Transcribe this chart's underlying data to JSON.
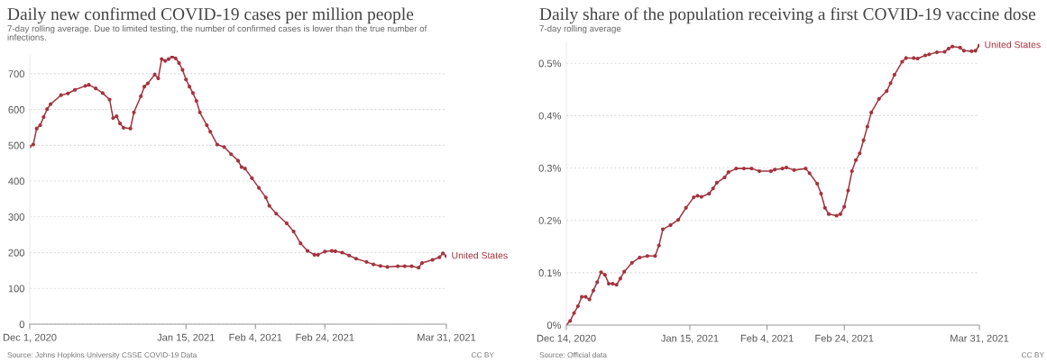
{
  "chart_data": [
    {
      "type": "line",
      "title": "Daily new confirmed COVID-19 cases per million people",
      "subtitle": "7-day rolling average. Due to limited testing, the number of confirmed cases is lower than the true number of\ninfections.",
      "annotations": [
        "Source: Johns Hopkins University CSSE COVID-19 Data",
        "CC BY"
      ],
      "series": [
        {
          "name": "United States",
          "color": "#a3343f",
          "x": [
            "2020-12-01",
            "2020-12-02",
            "2020-12-03",
            "2020-12-04",
            "2020-12-05",
            "2020-12-06",
            "2020-12-07",
            "2020-12-10",
            "2020-12-12",
            "2020-12-14",
            "2020-12-17",
            "2020-12-18",
            "2020-12-20",
            "2020-12-22",
            "2020-12-24",
            "2020-12-25",
            "2020-12-26",
            "2020-12-27",
            "2020-12-28",
            "2020-12-30",
            "2020-12-31",
            "2021-01-02",
            "2021-01-03",
            "2021-01-04",
            "2021-01-06",
            "2021-01-07",
            "2021-01-08",
            "2021-01-09",
            "2021-01-10",
            "2021-01-11",
            "2021-01-12",
            "2021-01-13",
            "2021-01-14",
            "2021-01-15",
            "2021-01-16",
            "2021-01-17",
            "2021-01-18",
            "2021-01-19",
            "2021-01-21",
            "2021-01-22",
            "2021-01-24",
            "2021-01-26",
            "2021-01-28",
            "2021-01-30",
            "2021-01-31",
            "2021-02-01",
            "2021-02-03",
            "2021-02-05",
            "2021-02-07",
            "2021-02-08",
            "2021-02-10",
            "2021-02-13",
            "2021-02-15",
            "2021-02-17",
            "2021-02-19",
            "2021-02-21",
            "2021-02-22",
            "2021-02-24",
            "2021-02-26",
            "2021-02-27",
            "2021-03-01",
            "2021-03-03",
            "2021-03-05",
            "2021-03-08",
            "2021-03-10",
            "2021-03-12",
            "2021-03-14",
            "2021-03-17",
            "2021-03-19",
            "2021-03-21",
            "2021-03-23",
            "2021-03-24",
            "2021-03-27",
            "2021-03-29",
            "2021-03-30",
            "2021-03-31"
          ],
          "values": [
            497,
            502,
            547,
            556,
            579,
            601,
            615,
            640,
            645,
            655,
            666,
            669,
            659,
            646,
            628,
            576,
            581,
            561,
            549,
            547,
            592,
            637,
            664,
            673,
            698,
            687,
            741,
            736,
            741,
            748,
            743,
            730,
            711,
            684,
            664,
            646,
            624,
            592,
            556,
            538,
            502,
            495,
            475,
            457,
            439,
            435,
            408,
            381,
            354,
            331,
            309,
            282,
            259,
            226,
            205,
            194,
            194,
            203,
            205,
            204,
            200,
            192,
            183,
            174,
            167,
            163,
            160,
            162,
            162,
            162,
            158,
            171,
            180,
            187,
            198,
            190
          ]
        }
      ],
      "xlim": [
        "2020-12-01",
        "2021-03-31"
      ],
      "xticks": [
        {
          "value": "2020-12-01",
          "label": "Dec 1, 2020"
        },
        {
          "value": "2021-01-15",
          "label": "Jan 15, 2021"
        },
        {
          "value": "2021-02-04",
          "label": "Feb 4, 2021"
        },
        {
          "value": "2021-02-24",
          "label": "Feb 24, 2021"
        },
        {
          "value": "2021-03-31",
          "label": "Mar 31, 2021"
        }
      ],
      "ylim": [
        0,
        750
      ],
      "yticks": [
        0,
        100,
        200,
        300,
        400,
        500,
        600,
        700
      ],
      "grid": "y",
      "legend": false,
      "marker": "circle",
      "line_style": "solid"
    },
    {
      "type": "line",
      "title": "Daily share of the population receiving a first COVID-19 vaccine dose",
      "subtitle": "7-day rolling average",
      "annotations": [
        "Source: Official data",
        "CC BY"
      ],
      "series": [
        {
          "name": "United States",
          "color": "#a3343f",
          "x": [
            "2020-12-14",
            "2020-12-15",
            "2020-12-16",
            "2020-12-17",
            "2020-12-18",
            "2020-12-19",
            "2020-12-20",
            "2020-12-21",
            "2020-12-22",
            "2020-12-23",
            "2020-12-24",
            "2020-12-25",
            "2020-12-26",
            "2020-12-27",
            "2020-12-28",
            "2020-12-29",
            "2020-12-31",
            "2021-01-02",
            "2021-01-04",
            "2021-01-06",
            "2021-01-07",
            "2021-01-08",
            "2021-01-10",
            "2021-01-12",
            "2021-01-14",
            "2021-01-16",
            "2021-01-17",
            "2021-01-18",
            "2021-01-20",
            "2021-01-21",
            "2021-01-22",
            "2021-01-24",
            "2021-01-25",
            "2021-01-27",
            "2021-01-29",
            "2021-01-31",
            "2021-02-02",
            "2021-02-05",
            "2021-02-06",
            "2021-02-08",
            "2021-02-09",
            "2021-02-11",
            "2021-02-14",
            "2021-02-15",
            "2021-02-17",
            "2021-02-18",
            "2021-02-19",
            "2021-02-20",
            "2021-02-22",
            "2021-02-23",
            "2021-02-24",
            "2021-02-25",
            "2021-02-26",
            "2021-02-27",
            "2021-02-28",
            "2021-03-01",
            "2021-03-02",
            "2021-03-03",
            "2021-03-05",
            "2021-03-07",
            "2021-03-08",
            "2021-03-09",
            "2021-03-11",
            "2021-03-12",
            "2021-03-14",
            "2021-03-15",
            "2021-03-17",
            "2021-03-18",
            "2021-03-20",
            "2021-03-22",
            "2021-03-23",
            "2021-03-24",
            "2021-03-26",
            "2021-03-27",
            "2021-03-29",
            "2021-03-30",
            "2021-03-31"
          ],
          "values": [
            0,
            0.008,
            0.023,
            0.036,
            0.054,
            0.054,
            0.049,
            0.066,
            0.082,
            0.101,
            0.096,
            0.079,
            0.079,
            0.077,
            0.089,
            0.102,
            0.119,
            0.129,
            0.132,
            0.132,
            0.152,
            0.183,
            0.191,
            0.201,
            0.224,
            0.244,
            0.247,
            0.245,
            0.251,
            0.261,
            0.272,
            0.282,
            0.292,
            0.299,
            0.299,
            0.299,
            0.294,
            0.294,
            0.297,
            0.299,
            0.301,
            0.296,
            0.299,
            0.29,
            0.27,
            0.251,
            0.224,
            0.212,
            0.209,
            0.212,
            0.226,
            0.257,
            0.294,
            0.315,
            0.328,
            0.353,
            0.379,
            0.406,
            0.432,
            0.447,
            0.462,
            0.478,
            0.503,
            0.51,
            0.51,
            0.509,
            0.515,
            0.517,
            0.521,
            0.522,
            0.528,
            0.532,
            0.53,
            0.524,
            0.523,
            0.524,
            0.534
          ]
        }
      ],
      "xlim": [
        "2020-12-14",
        "2021-03-31"
      ],
      "xticks": [
        {
          "value": "2020-12-14",
          "label": "Dec 14, 2020"
        },
        {
          "value": "2021-01-15",
          "label": "Jan 15, 2021"
        },
        {
          "value": "2021-02-04",
          "label": "Feb 4, 2021"
        },
        {
          "value": "2021-02-24",
          "label": "Feb 24, 2021"
        },
        {
          "value": "2021-03-31",
          "label": "Mar 31, 2021"
        }
      ],
      "ylim": [
        0,
        0.54
      ],
      "yticks": [
        {
          "value": 0,
          "label": "0%"
        },
        {
          "value": 0.1,
          "label": "0.1%"
        },
        {
          "value": 0.2,
          "label": "0.2%"
        },
        {
          "value": 0.3,
          "label": "0.3%"
        },
        {
          "value": 0.4,
          "label": "0.4%"
        },
        {
          "value": 0.5,
          "label": "0.5%"
        }
      ],
      "grid": "y",
      "legend": false,
      "marker": "circle",
      "line_style": "solid"
    }
  ]
}
